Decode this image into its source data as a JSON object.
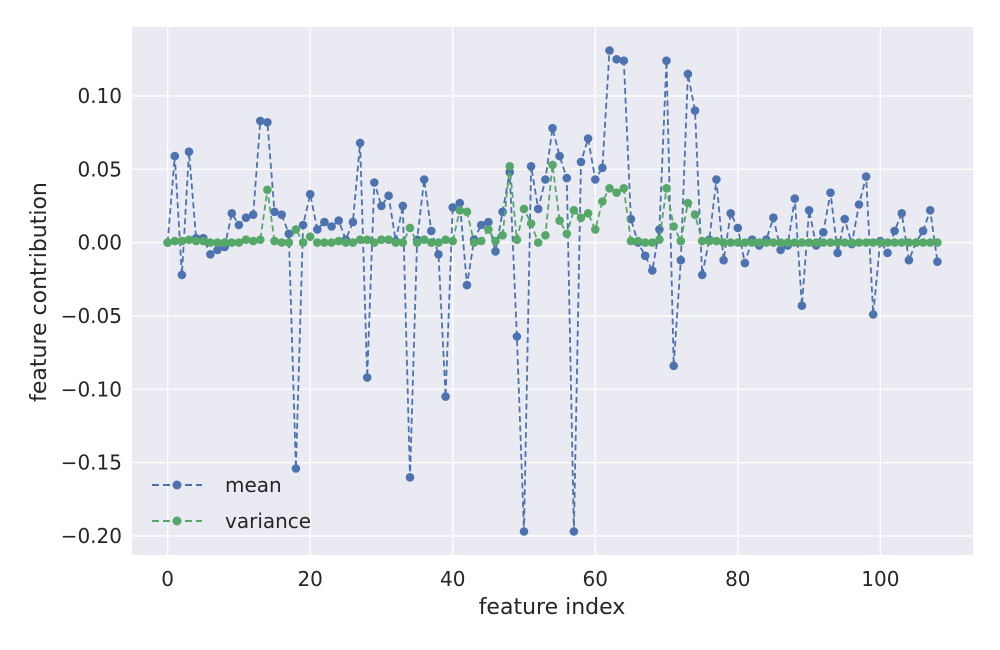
{
  "chart_data": {
    "type": "line",
    "xlabel": "feature index",
    "ylabel": "feature contribution",
    "xlim": [
      -5,
      113
    ],
    "ylim": [
      -0.213,
      0.147
    ],
    "xticks": [
      0,
      20,
      40,
      60,
      80,
      100
    ],
    "xtick_labels": [
      "0",
      "20",
      "40",
      "60",
      "80",
      "100"
    ],
    "yticks": [
      -0.2,
      -0.15,
      -0.1,
      -0.05,
      0.0,
      0.05,
      0.1
    ],
    "ytick_labels": [
      "−0.20",
      "−0.15",
      "−0.10",
      "−0.05",
      "0.00",
      "0.05",
      "0.10"
    ],
    "grid": true,
    "legend_position": "lower-left",
    "x": [
      0,
      1,
      2,
      3,
      4,
      5,
      6,
      7,
      8,
      9,
      10,
      11,
      12,
      13,
      14,
      15,
      16,
      17,
      18,
      19,
      20,
      21,
      22,
      23,
      24,
      25,
      26,
      27,
      28,
      29,
      30,
      31,
      32,
      33,
      34,
      35,
      36,
      37,
      38,
      39,
      40,
      41,
      42,
      43,
      44,
      45,
      46,
      47,
      48,
      49,
      50,
      51,
      52,
      53,
      54,
      55,
      56,
      57,
      58,
      59,
      60,
      61,
      62,
      63,
      64,
      65,
      66,
      67,
      68,
      69,
      70,
      71,
      72,
      73,
      74,
      75,
      76,
      77,
      78,
      79,
      80,
      81,
      82,
      83,
      84,
      85,
      86,
      87,
      88,
      89,
      90,
      91,
      92,
      93,
      94,
      95,
      96,
      97,
      98,
      99,
      100,
      101,
      102,
      103,
      104,
      105,
      106,
      107,
      108
    ],
    "series": [
      {
        "name": "mean",
        "color": "#4c72b0",
        "values": [
          0.0,
          0.059,
          -0.022,
          0.062,
          0.003,
          0.003,
          -0.008,
          -0.005,
          -0.003,
          0.02,
          0.012,
          0.017,
          0.019,
          0.083,
          0.082,
          0.021,
          0.019,
          0.006,
          -0.154,
          0.012,
          0.033,
          0.009,
          0.014,
          0.011,
          0.015,
          0.002,
          0.014,
          0.068,
          -0.092,
          0.041,
          0.025,
          0.032,
          0.001,
          0.025,
          -0.16,
          0.002,
          0.043,
          0.008,
          -0.008,
          -0.105,
          0.024,
          0.027,
          -0.029,
          0.002,
          0.012,
          0.014,
          -0.006,
          0.021,
          0.048,
          -0.064,
          -0.197,
          0.052,
          0.023,
          0.043,
          0.078,
          0.059,
          0.044,
          -0.197,
          0.055,
          0.071,
          0.043,
          0.051,
          0.131,
          0.125,
          0.124,
          0.016,
          0.0,
          -0.009,
          -0.019,
          0.009,
          0.124,
          -0.084,
          -0.012,
          0.115,
          0.09,
          -0.022,
          0.002,
          0.043,
          -0.012,
          0.02,
          0.01,
          -0.014,
          0.002,
          -0.002,
          0.002,
          0.017,
          -0.005,
          -0.002,
          0.03,
          -0.043,
          0.022,
          -0.002,
          0.007,
          0.034,
          -0.007,
          0.016,
          -0.001,
          0.026,
          0.045,
          -0.049,
          0.001,
          -0.007,
          0.008,
          0.02,
          -0.012,
          0.0,
          0.008,
          0.022,
          -0.013
        ]
      },
      {
        "name": "variance",
        "color": "#55a868",
        "values": [
          0.0,
          0.001,
          0.001,
          0.002,
          0.001,
          0.001,
          0.0,
          0.0,
          0.0,
          0.0,
          0.0,
          0.002,
          0.001,
          0.002,
          0.036,
          0.001,
          0.0,
          0.0,
          0.009,
          0.0,
          0.004,
          0.0,
          0.0,
          0.0,
          0.001,
          0.0,
          0.0,
          0.002,
          0.002,
          0.0,
          0.002,
          0.002,
          0.0,
          0.0,
          0.01,
          0.0,
          0.002,
          0.0,
          0.0,
          0.002,
          0.001,
          0.022,
          0.021,
          0.0,
          0.001,
          0.009,
          0.001,
          0.005,
          0.052,
          0.002,
          0.023,
          0.013,
          0.0,
          0.005,
          0.053,
          0.015,
          0.006,
          0.022,
          0.017,
          0.02,
          0.009,
          0.028,
          0.037,
          0.034,
          0.037,
          0.001,
          0.001,
          0.0,
          0.0,
          0.002,
          0.037,
          0.011,
          0.001,
          0.027,
          0.019,
          0.001,
          0.001,
          0.001,
          0.0,
          0.0,
          0.0,
          0.0,
          0.0,
          0.0,
          0.0,
          0.0,
          0.0,
          0.0,
          0.0,
          0.0,
          0.0,
          0.0,
          0.0,
          0.0,
          0.0,
          0.0,
          0.0,
          0.0,
          0.0,
          0.0,
          0.0,
          0.0,
          0.0,
          0.0,
          0.0,
          0.0,
          0.0,
          0.0,
          0.0
        ]
      }
    ]
  }
}
